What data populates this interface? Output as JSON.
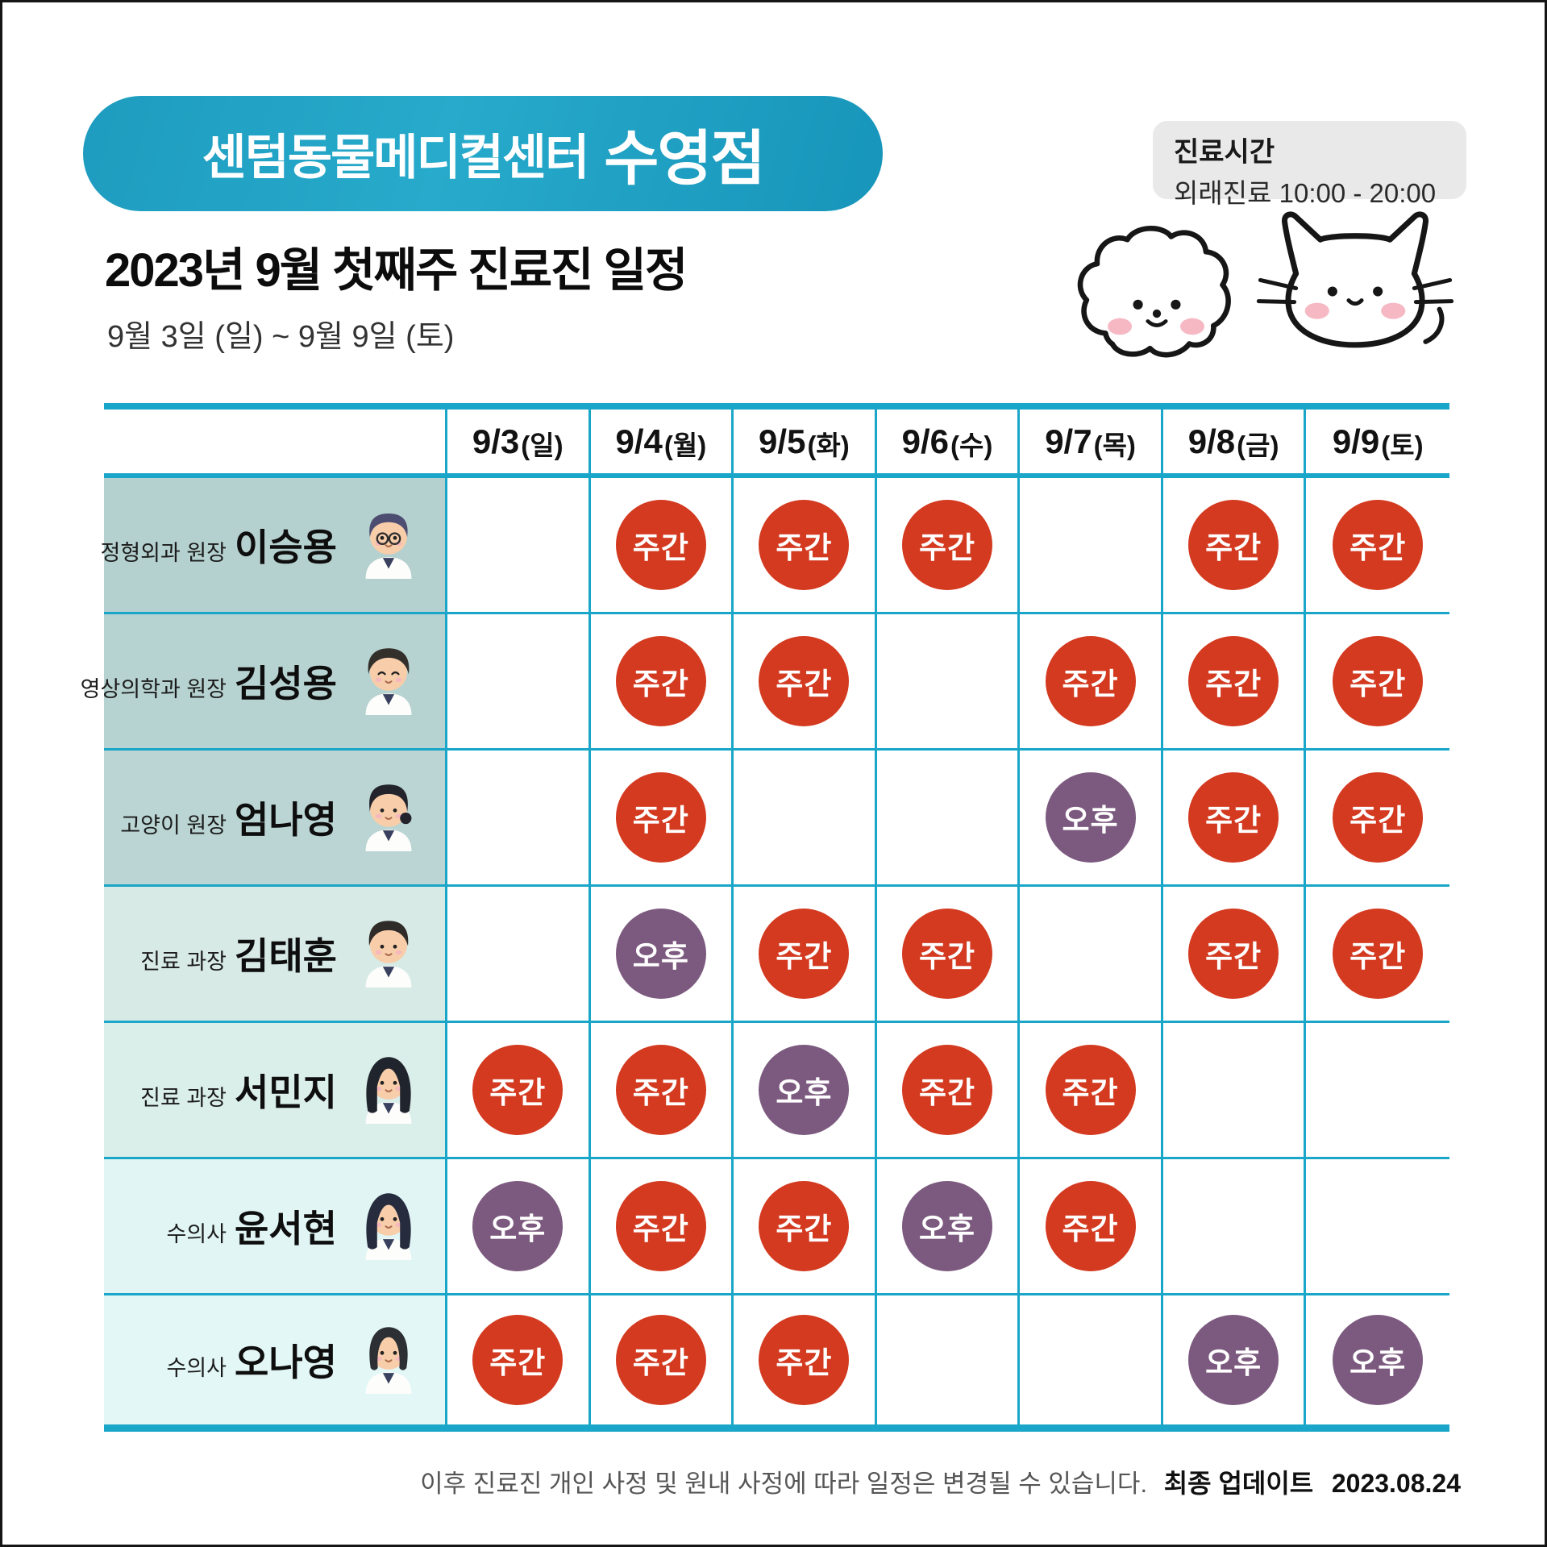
{
  "header": {
    "clinic_name": "센텀동물메디컬센터",
    "branch": "수영점",
    "hours_title": "진료시간",
    "hours_value": "외래진료 10:00 - 20:00",
    "title": "2023년 9월 첫째주 진료진 일정",
    "date_range": "9월 3일 (일) ~ 9월 9일 (토)"
  },
  "decorations": {
    "dog": "dog-doodle-icon",
    "cat": "cat-doodle-icon"
  },
  "shift_types": {
    "주간": {
      "meaning": "day-shift",
      "color": "#d33a20"
    },
    "오후": {
      "meaning": "afternoon-shift",
      "color": "#7c5a7f"
    }
  },
  "colors": {
    "grid_line": "#1aa6c8",
    "pill_teal": "#1f9fc2",
    "hours_box_bg": "#e9e9ea"
  },
  "table": {
    "date_columns": [
      {
        "date": "9/3",
        "day": "(일)"
      },
      {
        "date": "9/4",
        "day": "(월)"
      },
      {
        "date": "9/5",
        "day": "(화)"
      },
      {
        "date": "9/6",
        "day": "(수)"
      },
      {
        "date": "9/7",
        "day": "(목)"
      },
      {
        "date": "9/8",
        "day": "(금)"
      },
      {
        "date": "9/9",
        "day": "(토)"
      }
    ],
    "rows": [
      {
        "role": "정형외과 원장",
        "name": "이승용",
        "avatar": "male-glasses",
        "row_bg": "#b5d1cf",
        "shifts": [
          "",
          "주간",
          "주간",
          "주간",
          "",
          "주간",
          "주간"
        ]
      },
      {
        "role": "영상의학과 원장",
        "name": "김성용",
        "avatar": "male-happy",
        "row_bg": "#b7d3d1",
        "shifts": [
          "",
          "주간",
          "주간",
          "",
          "주간",
          "주간",
          "주간"
        ]
      },
      {
        "role": "고양이 원장",
        "name": "엄나영",
        "avatar": "female-ponytail",
        "row_bg": "#bad5d3",
        "shifts": [
          "",
          "주간",
          "",
          "",
          "오후",
          "주간",
          "주간"
        ]
      },
      {
        "role": "진료 과장",
        "name": "김태훈",
        "avatar": "male",
        "row_bg": "#d7eae5",
        "shifts": [
          "",
          "오후",
          "주간",
          "주간",
          "",
          "주간",
          "주간"
        ]
      },
      {
        "role": "진료 과장",
        "name": "서민지",
        "avatar": "female-long",
        "row_bg": "#daeeea",
        "shifts": [
          "주간",
          "주간",
          "오후",
          "주간",
          "주간",
          "",
          ""
        ]
      },
      {
        "role": "수의사",
        "name": "윤서현",
        "avatar": "female-long-navy",
        "row_bg": "#e0f5f4",
        "shifts": [
          "오후",
          "주간",
          "주간",
          "오후",
          "주간",
          "",
          ""
        ]
      },
      {
        "role": "수의사",
        "name": "오나영",
        "avatar": "female-bob",
        "row_bg": "#e2f7f6",
        "shifts": [
          "주간",
          "주간",
          "주간",
          "",
          "",
          "오후",
          "오후"
        ]
      }
    ]
  },
  "footer": {
    "note": "이후 진료진 개인 사정 및 원내 사정에 따라 일정은 변경될 수 있습니다.",
    "update_label": "최종 업데이트",
    "update_date": "2023.08.24"
  }
}
